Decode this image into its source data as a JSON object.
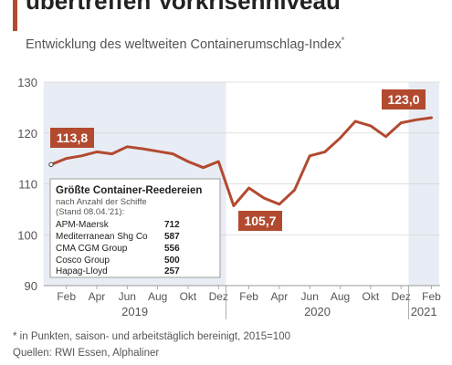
{
  "header": {
    "title": "übertreffen Vorkrisenniveau",
    "subtitle": "Entwicklung des weltweiten Containerumschlag-Index",
    "subtitle_marker": "*"
  },
  "footer": {
    "footnote": "* in Punkten, saison- und arbeitstäglich bereinigt, 2015=100",
    "source": "Quellen: RWI Essen, Alphaliner"
  },
  "colors": {
    "line": "#b24a30",
    "shade": "#e8ecf4",
    "grid": "#d6d6d6",
    "axis_text": "#555555"
  },
  "chart_data": {
    "type": "line",
    "x": [
      "2019-01",
      "2019-02",
      "2019-03",
      "2019-04",
      "2019-05",
      "2019-06",
      "2019-07",
      "2019-08",
      "2019-09",
      "2019-10",
      "2019-11",
      "2019-12",
      "2020-01",
      "2020-02",
      "2020-03",
      "2020-04",
      "2020-05",
      "2020-06",
      "2020-07",
      "2020-08",
      "2020-09",
      "2020-10",
      "2020-11",
      "2020-12",
      "2021-01",
      "2021-02"
    ],
    "series": [
      {
        "values": [
          113.8,
          115.0,
          115.5,
          116.3,
          115.9,
          117.3,
          116.9,
          116.4,
          115.9,
          114.4,
          113.2,
          114.4,
          105.7,
          109.2,
          107.2,
          106.0,
          108.8,
          115.5,
          116.3,
          119.0,
          122.3,
          121.4,
          119.3,
          122.0,
          122.6,
          123.0
        ]
      }
    ],
    "ylim": [
      90,
      130
    ],
    "yticks": [
      90,
      100,
      110,
      120,
      130
    ],
    "xtick_labels": [
      "Feb",
      "Apr",
      "Jun",
      "Aug",
      "Okt",
      "Dez",
      "Feb",
      "Apr",
      "Jun",
      "Aug",
      "Okt",
      "Dez",
      "Feb"
    ],
    "year_labels": [
      "2019",
      "2020",
      "2021"
    ],
    "shaded_periods": [
      [
        "2019-01",
        "2019-12"
      ],
      [
        "2021-01",
        "2021-02"
      ]
    ],
    "annotations": [
      {
        "x": "2019-01",
        "y": 113.8,
        "text": "113,8"
      },
      {
        "x": "2020-01",
        "y": 105.7,
        "text": "105,7"
      },
      {
        "x": "2021-02",
        "y": 123.0,
        "text": "123,0"
      }
    ],
    "grid": true
  },
  "inset_table": {
    "title": "Größte Container-Reedereien",
    "subtitle": "nach Anzahl der Schiffe",
    "date_note": "(Stand 08.04.'21):",
    "rows": [
      {
        "name": "APM-Maersk",
        "value": "712"
      },
      {
        "name": "Mediterranean Shg Co",
        "value": "587"
      },
      {
        "name": "CMA CGM Group",
        "value": "556"
      },
      {
        "name": "Cosco Group",
        "value": "500"
      },
      {
        "name": "Hapag-Lloyd",
        "value": "257"
      }
    ]
  }
}
